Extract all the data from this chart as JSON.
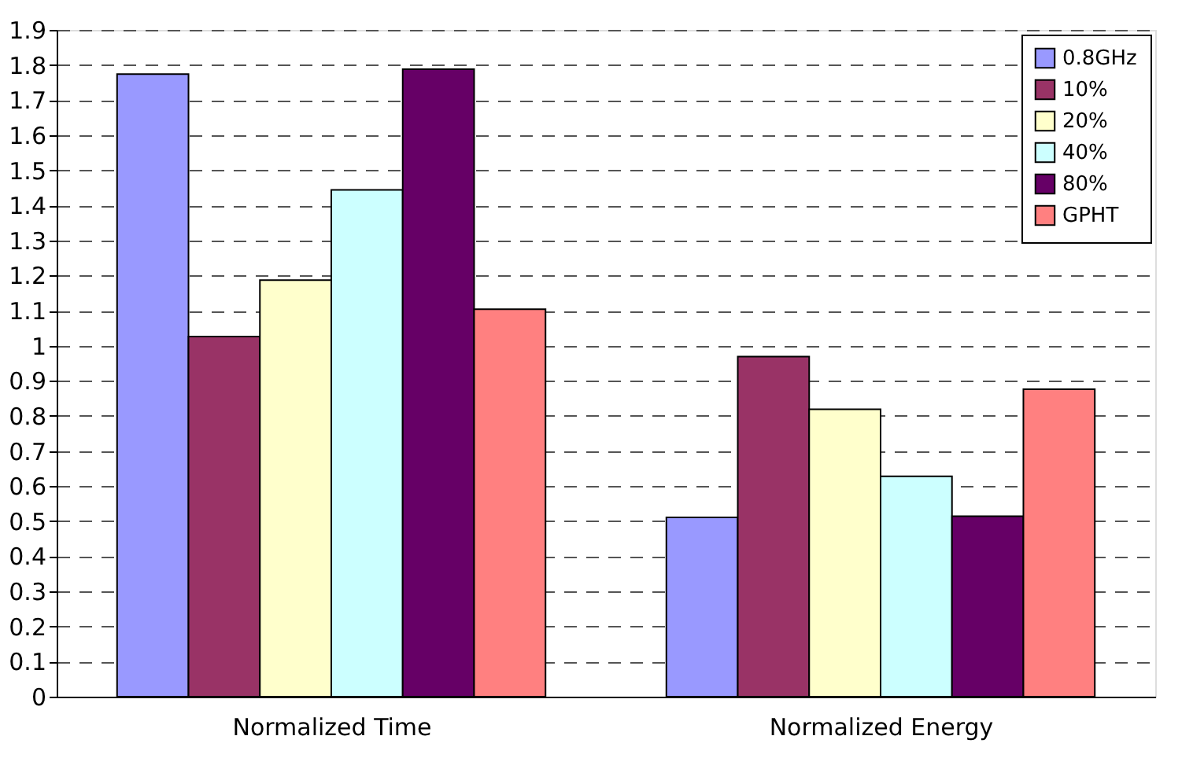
{
  "chart_data": {
    "type": "bar",
    "categories": [
      "Normalized Time",
      "Normalized Energy"
    ],
    "series": [
      {
        "name": "0.8GHz",
        "color": "#9999ff",
        "values": [
          1.774,
          0.511
        ]
      },
      {
        "name": "10%",
        "color": "#993366",
        "values": [
          1.026,
          0.969
        ]
      },
      {
        "name": "20%",
        "color": "#ffffcc",
        "values": [
          1.187,
          0.819
        ]
      },
      {
        "name": "40%",
        "color": "#ccffff",
        "values": [
          1.444,
          0.628
        ]
      },
      {
        "name": "80%",
        "color": "#660066",
        "values": [
          1.788,
          0.514
        ]
      },
      {
        "name": "GPHT",
        "color": "#ff8080",
        "values": [
          1.104,
          0.876
        ]
      }
    ],
    "ylim": [
      0,
      1.9
    ],
    "yticks": [
      0,
      0.1,
      0.2,
      0.3,
      0.4,
      0.5,
      0.6,
      0.7,
      0.8,
      0.9,
      1,
      1.1,
      1.2,
      1.3,
      1.4,
      1.5,
      1.6,
      1.7,
      1.8,
      1.9
    ],
    "grid": "y",
    "legend": "top right"
  }
}
